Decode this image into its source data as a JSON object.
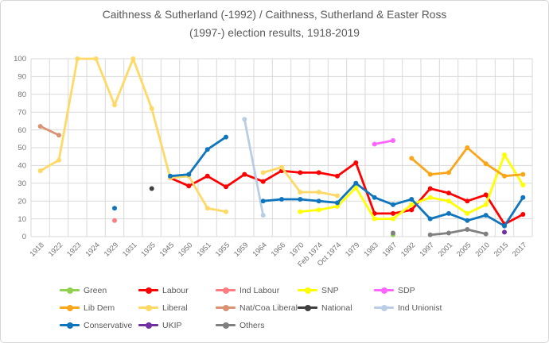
{
  "title": {
    "line1": "Caithness & Sutherland (-1992) / Caithness, Sutherland & Easter Ross",
    "line2": "(1997-) election results, 1918-2019"
  },
  "chart_data": {
    "type": "line",
    "title": "Caithness & Sutherland (-1992) / Caithness, Sutherland & Easter Ross (1997-) election results, 1918-2019",
    "xlabel": "",
    "ylabel": "",
    "ylim": [
      0,
      100
    ],
    "ytick_step": 10,
    "grid": true,
    "legend_position": "bottom",
    "categories": [
      "1918",
      "1922",
      "1923",
      "1924",
      "1929",
      "1931",
      "1935",
      "1945",
      "1950",
      "1951",
      "1955",
      "1959",
      "1964",
      "1966",
      "1970",
      "Feb 1974",
      "Oct 1974",
      "1979",
      "1983",
      "1987",
      "1992",
      "1997",
      "2001",
      "2005",
      "2010",
      "2015",
      "2017"
    ],
    "series": [
      {
        "name": "Green",
        "color": "#92D050",
        "values": [
          null,
          null,
          null,
          null,
          null,
          null,
          null,
          null,
          null,
          null,
          null,
          null,
          null,
          null,
          null,
          null,
          null,
          null,
          null,
          1,
          null,
          null,
          null,
          null,
          null,
          null,
          null
        ]
      },
      {
        "name": "Labour",
        "color": "#FF0000",
        "values": [
          null,
          null,
          null,
          null,
          null,
          null,
          null,
          33,
          28.5,
          34,
          28,
          35,
          31,
          37,
          36,
          36,
          34,
          41.5,
          13,
          13,
          15,
          27,
          24.5,
          20,
          23.5,
          7,
          12.5
        ]
      },
      {
        "name": "Ind Labour",
        "color": "#FF7C80",
        "values": [
          null,
          null,
          null,
          null,
          9,
          null,
          null,
          null,
          null,
          null,
          null,
          null,
          null,
          null,
          null,
          null,
          null,
          null,
          null,
          null,
          null,
          null,
          null,
          null,
          null,
          null,
          null
        ]
      },
      {
        "name": "SNP",
        "color": "#FFFF00",
        "values": [
          null,
          null,
          null,
          null,
          null,
          null,
          null,
          null,
          null,
          null,
          null,
          null,
          null,
          null,
          14,
          15,
          17,
          27.5,
          10,
          10,
          18,
          22,
          20,
          13,
          18,
          46,
          29
        ]
      },
      {
        "name": "SDP",
        "color": "#FF66FF",
        "values": [
          null,
          null,
          null,
          null,
          null,
          null,
          null,
          null,
          null,
          null,
          null,
          null,
          null,
          null,
          null,
          null,
          null,
          null,
          52,
          54,
          null,
          null,
          null,
          null,
          null,
          null,
          null
        ]
      },
      {
        "name": "Lib Dem",
        "color": "#FAA61A",
        "values": [
          null,
          null,
          null,
          null,
          null,
          null,
          null,
          null,
          null,
          null,
          null,
          null,
          null,
          null,
          null,
          null,
          null,
          null,
          null,
          null,
          44,
          35,
          36,
          50,
          41,
          34,
          35
        ]
      },
      {
        "name": "Liberal",
        "color": "#FFD966",
        "values": [
          37,
          43,
          100,
          100,
          74,
          100,
          72,
          33,
          34,
          16,
          14,
          null,
          36,
          39,
          25,
          25,
          23,
          null,
          null,
          null,
          null,
          null,
          null,
          null,
          null,
          null,
          null
        ]
      },
      {
        "name": "Nat/Coa Liberal",
        "color": "#D99372",
        "values": [
          62,
          57,
          null,
          null,
          null,
          null,
          null,
          null,
          null,
          null,
          null,
          null,
          null,
          null,
          null,
          null,
          null,
          null,
          null,
          null,
          null,
          null,
          null,
          null,
          null,
          null,
          null
        ]
      },
      {
        "name": "National",
        "color": "#404040",
        "values": [
          null,
          null,
          null,
          null,
          null,
          null,
          27,
          null,
          null,
          null,
          null,
          null,
          null,
          null,
          null,
          null,
          null,
          null,
          null,
          null,
          null,
          null,
          null,
          null,
          null,
          null,
          null
        ]
      },
      {
        "name": "Ind Unionist",
        "color": "#B9CDE5",
        "values": [
          null,
          null,
          null,
          null,
          null,
          null,
          null,
          null,
          null,
          null,
          null,
          66,
          12,
          null,
          null,
          null,
          null,
          null,
          null,
          null,
          null,
          null,
          null,
          null,
          null,
          null,
          null
        ]
      },
      {
        "name": "Conservative",
        "color": "#0F75BC",
        "values": [
          null,
          null,
          null,
          null,
          16,
          null,
          null,
          34,
          35,
          49,
          56,
          null,
          20,
          21,
          21,
          20,
          19,
          30,
          22,
          18,
          21,
          10,
          13,
          9,
          12,
          6,
          22
        ]
      },
      {
        "name": "UKIP",
        "color": "#7030A0",
        "values": [
          null,
          null,
          null,
          null,
          null,
          null,
          null,
          null,
          null,
          null,
          null,
          null,
          null,
          null,
          null,
          null,
          null,
          null,
          null,
          null,
          null,
          null,
          null,
          null,
          null,
          2.5,
          null
        ]
      },
      {
        "name": "Others",
        "color": "#808080",
        "values": [
          null,
          null,
          null,
          null,
          null,
          null,
          null,
          null,
          null,
          null,
          null,
          null,
          null,
          null,
          null,
          null,
          null,
          null,
          null,
          2,
          null,
          1,
          2,
          4,
          1.5,
          null,
          null
        ]
      }
    ]
  }
}
